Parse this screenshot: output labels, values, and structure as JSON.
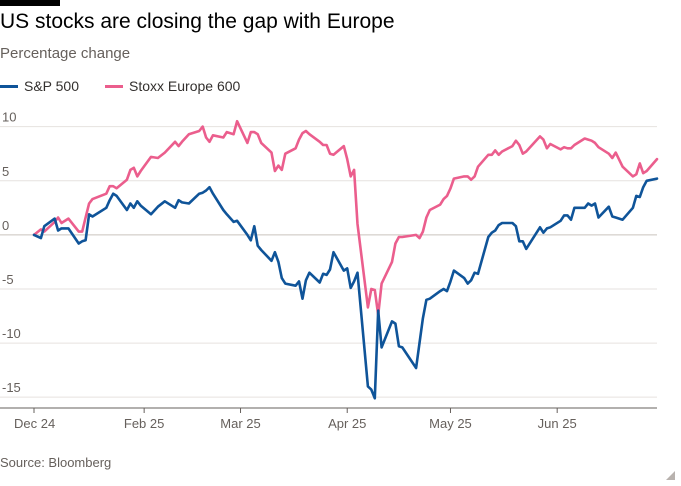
{
  "header": {
    "title": "US stocks are closing the gap with Europe",
    "subtitle": "Percentage change"
  },
  "legend": {
    "items": [
      {
        "label": "S&P 500",
        "color": "#0f5499"
      },
      {
        "label": "Stoxx Europe 600",
        "color": "#eb5e8d"
      }
    ]
  },
  "footer": {
    "source": "Source: Bloomberg"
  },
  "chart_data": {
    "type": "line",
    "title": "US stocks are closing the gap with Europe",
    "subtitle": "Percentage change",
    "ylim": [
      -16,
      12
    ],
    "yticks": [
      10,
      5,
      0,
      -5,
      -10,
      -15
    ],
    "xlim": [
      "2024-12-31",
      "2025-06-30"
    ],
    "xticks": [
      {
        "date": "2024-12-31",
        "label": "Dec 24"
      },
      {
        "date": "2025-02-01",
        "label": "Feb 25"
      },
      {
        "date": "2025-03-01",
        "label": "Mar 25"
      },
      {
        "date": "2025-04-01",
        "label": "Apr 25"
      },
      {
        "date": "2025-05-01",
        "label": "May 25"
      },
      {
        "date": "2025-06-01",
        "label": "Jun 25"
      }
    ],
    "grid": true,
    "legend_position": "top-left",
    "series": [
      {
        "name": "S&P 500",
        "color": "#0f5499",
        "points": [
          [
            "2024-12-31",
            0.0
          ],
          [
            "2025-01-02",
            -0.3
          ],
          [
            "2025-01-03",
            0.8
          ],
          [
            "2025-01-06",
            1.5
          ],
          [
            "2025-01-07",
            0.4
          ],
          [
            "2025-01-08",
            0.6
          ],
          [
            "2025-01-10",
            0.6
          ],
          [
            "2025-01-13",
            -0.8
          ],
          [
            "2025-01-14",
            -0.6
          ],
          [
            "2025-01-15",
            -0.5
          ],
          [
            "2025-01-16",
            1.9
          ],
          [
            "2025-01-17",
            1.7
          ],
          [
            "2025-01-21",
            2.5
          ],
          [
            "2025-01-22",
            3.2
          ],
          [
            "2025-01-23",
            3.8
          ],
          [
            "2025-01-24",
            3.6
          ],
          [
            "2025-01-27",
            2.3
          ],
          [
            "2025-01-28",
            2.9
          ],
          [
            "2025-01-29",
            2.5
          ],
          [
            "2025-01-30",
            3.1
          ],
          [
            "2025-01-31",
            2.7
          ],
          [
            "2025-02-03",
            1.9
          ],
          [
            "2025-02-05",
            2.6
          ],
          [
            "2025-02-07",
            3.1
          ],
          [
            "2025-02-10",
            2.5
          ],
          [
            "2025-02-11",
            3.2
          ],
          [
            "2025-02-12",
            3.0
          ],
          [
            "2025-02-14",
            2.9
          ],
          [
            "2025-02-17",
            3.8
          ],
          [
            "2025-02-18",
            3.9
          ],
          [
            "2025-02-19",
            4.1
          ],
          [
            "2025-02-20",
            4.4
          ],
          [
            "2025-02-21",
            3.8
          ],
          [
            "2025-02-24",
            2.3
          ],
          [
            "2025-02-25",
            1.9
          ],
          [
            "2025-02-27",
            1.2
          ],
          [
            "2025-02-28",
            1.3
          ],
          [
            "2025-03-03",
            0.0
          ],
          [
            "2025-03-04",
            -0.5
          ],
          [
            "2025-03-05",
            0.8
          ],
          [
            "2025-03-06",
            -1.0
          ],
          [
            "2025-03-07",
            -1.4
          ],
          [
            "2025-03-10",
            -2.4
          ],
          [
            "2025-03-11",
            -1.6
          ],
          [
            "2025-03-12",
            -2.5
          ],
          [
            "2025-03-13",
            -4.0
          ],
          [
            "2025-03-14",
            -4.5
          ],
          [
            "2025-03-17",
            -4.7
          ],
          [
            "2025-03-18",
            -4.3
          ],
          [
            "2025-03-19",
            -5.9
          ],
          [
            "2025-03-20",
            -4.2
          ],
          [
            "2025-03-21",
            -3.5
          ],
          [
            "2025-03-24",
            -4.4
          ],
          [
            "2025-03-25",
            -3.6
          ],
          [
            "2025-03-26",
            -3.7
          ],
          [
            "2025-03-27",
            -3.2
          ],
          [
            "2025-03-28",
            -1.6
          ],
          [
            "2025-03-31",
            -3.3
          ],
          [
            "2025-04-01",
            -3.1
          ],
          [
            "2025-04-02",
            -4.9
          ],
          [
            "2025-04-03",
            -4.3
          ],
          [
            "2025-04-04",
            -3.5
          ],
          [
            "2025-04-07",
            -14.0
          ],
          [
            "2025-04-08",
            -14.3
          ],
          [
            "2025-04-09",
            -15.1
          ],
          [
            "2025-04-10",
            -7.0
          ],
          [
            "2025-04-11",
            -10.4
          ],
          [
            "2025-04-14",
            -8.0
          ],
          [
            "2025-04-15",
            -8.2
          ],
          [
            "2025-04-16",
            -10.3
          ],
          [
            "2025-04-17",
            -10.4
          ],
          [
            "2025-04-21",
            -12.3
          ],
          [
            "2025-04-22",
            -10.0
          ],
          [
            "2025-04-23",
            -7.7
          ],
          [
            "2025-04-24",
            -6.0
          ],
          [
            "2025-04-25",
            -5.9
          ],
          [
            "2025-04-28",
            -5.2
          ],
          [
            "2025-04-29",
            -5.0
          ],
          [
            "2025-04-30",
            -5.2
          ],
          [
            "2025-05-01",
            -4.3
          ],
          [
            "2025-05-02",
            -3.3
          ],
          [
            "2025-05-05",
            -4.0
          ],
          [
            "2025-05-06",
            -4.5
          ],
          [
            "2025-05-07",
            -4.2
          ],
          [
            "2025-05-08",
            -3.5
          ],
          [
            "2025-05-09",
            -3.6
          ],
          [
            "2025-05-12",
            -0.2
          ],
          [
            "2025-05-13",
            0.2
          ],
          [
            "2025-05-14",
            0.4
          ],
          [
            "2025-05-15",
            0.9
          ],
          [
            "2025-05-16",
            1.1
          ],
          [
            "2025-05-19",
            1.1
          ],
          [
            "2025-05-20",
            0.8
          ],
          [
            "2025-05-21",
            -0.6
          ],
          [
            "2025-05-22",
            -0.6
          ],
          [
            "2025-05-23",
            -1.3
          ],
          [
            "2025-05-27",
            0.7
          ],
          [
            "2025-05-28",
            0.2
          ],
          [
            "2025-05-29",
            0.6
          ],
          [
            "2025-05-30",
            0.7
          ],
          [
            "2025-06-02",
            1.3
          ],
          [
            "2025-06-03",
            1.8
          ],
          [
            "2025-06-04",
            1.8
          ],
          [
            "2025-06-05",
            1.4
          ],
          [
            "2025-06-06",
            2.5
          ],
          [
            "2025-06-09",
            2.5
          ],
          [
            "2025-06-10",
            2.9
          ],
          [
            "2025-06-11",
            2.7
          ],
          [
            "2025-06-12",
            2.9
          ],
          [
            "2025-06-13",
            1.6
          ],
          [
            "2025-06-16",
            2.6
          ],
          [
            "2025-06-17",
            1.7
          ],
          [
            "2025-06-18",
            1.6
          ],
          [
            "2025-06-20",
            1.4
          ],
          [
            "2025-06-23",
            2.5
          ],
          [
            "2025-06-24",
            3.6
          ],
          [
            "2025-06-25",
            3.5
          ],
          [
            "2025-06-26",
            4.4
          ],
          [
            "2025-06-27",
            5.0
          ],
          [
            "2025-06-30",
            5.2
          ]
        ]
      },
      {
        "name": "Stoxx Europe 600",
        "color": "#eb5e8d",
        "points": [
          [
            "2024-12-31",
            0.0
          ],
          [
            "2025-01-02",
            0.5
          ],
          [
            "2025-01-03",
            0.3
          ],
          [
            "2025-01-06",
            1.2
          ],
          [
            "2025-01-07",
            1.6
          ],
          [
            "2025-01-08",
            1.1
          ],
          [
            "2025-01-10",
            1.5
          ],
          [
            "2025-01-13",
            0.3
          ],
          [
            "2025-01-14",
            0.3
          ],
          [
            "2025-01-15",
            1.6
          ],
          [
            "2025-01-16",
            2.9
          ],
          [
            "2025-01-17",
            3.3
          ],
          [
            "2025-01-21",
            3.8
          ],
          [
            "2025-01-22",
            4.5
          ],
          [
            "2025-01-23",
            4.5
          ],
          [
            "2025-01-24",
            4.3
          ],
          [
            "2025-01-27",
            5.1
          ],
          [
            "2025-01-28",
            6.0
          ],
          [
            "2025-01-29",
            6.2
          ],
          [
            "2025-01-30",
            5.4
          ],
          [
            "2025-01-31",
            5.9
          ],
          [
            "2025-02-03",
            7.2
          ],
          [
            "2025-02-05",
            7.1
          ],
          [
            "2025-02-07",
            7.6
          ],
          [
            "2025-02-10",
            8.6
          ],
          [
            "2025-02-11",
            8.2
          ],
          [
            "2025-02-12",
            8.6
          ],
          [
            "2025-02-14",
            9.3
          ],
          [
            "2025-02-17",
            9.6
          ],
          [
            "2025-02-18",
            10.0
          ],
          [
            "2025-02-19",
            9.0
          ],
          [
            "2025-02-20",
            8.6
          ],
          [
            "2025-02-21",
            9.2
          ],
          [
            "2025-02-24",
            9.0
          ],
          [
            "2025-02-25",
            9.5
          ],
          [
            "2025-02-27",
            9.3
          ],
          [
            "2025-02-28",
            10.5
          ],
          [
            "2025-03-03",
            8.5
          ],
          [
            "2025-03-04",
            9.5
          ],
          [
            "2025-03-05",
            9.5
          ],
          [
            "2025-03-06",
            9.3
          ],
          [
            "2025-03-07",
            8.5
          ],
          [
            "2025-03-10",
            7.6
          ],
          [
            "2025-03-11",
            5.9
          ],
          [
            "2025-03-12",
            6.4
          ],
          [
            "2025-03-13",
            6.0
          ],
          [
            "2025-03-14",
            7.5
          ],
          [
            "2025-03-17",
            8.0
          ],
          [
            "2025-03-18",
            8.8
          ],
          [
            "2025-03-19",
            9.4
          ],
          [
            "2025-03-20",
            9.6
          ],
          [
            "2025-03-21",
            9.3
          ],
          [
            "2025-03-24",
            8.6
          ],
          [
            "2025-03-25",
            8.3
          ],
          [
            "2025-03-26",
            8.3
          ],
          [
            "2025-03-27",
            7.5
          ],
          [
            "2025-03-28",
            7.4
          ],
          [
            "2025-03-31",
            8.2
          ],
          [
            "2025-04-01",
            7.0
          ],
          [
            "2025-04-02",
            5.4
          ],
          [
            "2025-04-03",
            6.0
          ],
          [
            "2025-04-04",
            1.0
          ],
          [
            "2025-04-07",
            -6.7
          ],
          [
            "2025-04-08",
            -5.0
          ],
          [
            "2025-04-09",
            -5.1
          ],
          [
            "2025-04-10",
            -7.4
          ],
          [
            "2025-04-11",
            -4.5
          ],
          [
            "2025-04-14",
            -2.5
          ],
          [
            "2025-04-15",
            -0.8
          ],
          [
            "2025-04-16",
            -0.2
          ],
          [
            "2025-04-17",
            -0.2
          ],
          [
            "2025-04-21",
            0.0
          ],
          [
            "2025-04-22",
            -0.3
          ],
          [
            "2025-04-23",
            0.3
          ],
          [
            "2025-04-24",
            1.6
          ],
          [
            "2025-04-25",
            2.3
          ],
          [
            "2025-04-28",
            2.8
          ],
          [
            "2025-04-29",
            3.3
          ],
          [
            "2025-04-30",
            3.6
          ],
          [
            "2025-05-01",
            4.3
          ],
          [
            "2025-05-02",
            5.2
          ],
          [
            "2025-05-05",
            5.4
          ],
          [
            "2025-05-06",
            5.4
          ],
          [
            "2025-05-07",
            5.1
          ],
          [
            "2025-05-08",
            5.4
          ],
          [
            "2025-05-09",
            6.3
          ],
          [
            "2025-05-12",
            7.4
          ],
          [
            "2025-05-13",
            7.4
          ],
          [
            "2025-05-14",
            7.8
          ],
          [
            "2025-05-15",
            7.4
          ],
          [
            "2025-05-16",
            7.7
          ],
          [
            "2025-05-19",
            8.2
          ],
          [
            "2025-05-20",
            8.7
          ],
          [
            "2025-05-21",
            8.3
          ],
          [
            "2025-05-22",
            7.5
          ],
          [
            "2025-05-23",
            7.7
          ],
          [
            "2025-05-27",
            9.1
          ],
          [
            "2025-05-28",
            8.8
          ],
          [
            "2025-05-29",
            8.0
          ],
          [
            "2025-05-30",
            8.4
          ],
          [
            "2025-06-02",
            7.9
          ],
          [
            "2025-06-03",
            8.1
          ],
          [
            "2025-06-04",
            8.0
          ],
          [
            "2025-06-05",
            8.0
          ],
          [
            "2025-06-06",
            8.3
          ],
          [
            "2025-06-09",
            8.9
          ],
          [
            "2025-06-10",
            8.8
          ],
          [
            "2025-06-11",
            8.7
          ],
          [
            "2025-06-12",
            8.5
          ],
          [
            "2025-06-13",
            8.1
          ],
          [
            "2025-06-16",
            7.5
          ],
          [
            "2025-06-17",
            7.1
          ],
          [
            "2025-06-18",
            7.6
          ],
          [
            "2025-06-20",
            6.3
          ],
          [
            "2025-06-23",
            5.4
          ],
          [
            "2025-06-24",
            5.6
          ],
          [
            "2025-06-25",
            6.6
          ],
          [
            "2025-06-26",
            5.7
          ],
          [
            "2025-06-27",
            5.9
          ],
          [
            "2025-06-30",
            7.0
          ]
        ]
      }
    ]
  }
}
